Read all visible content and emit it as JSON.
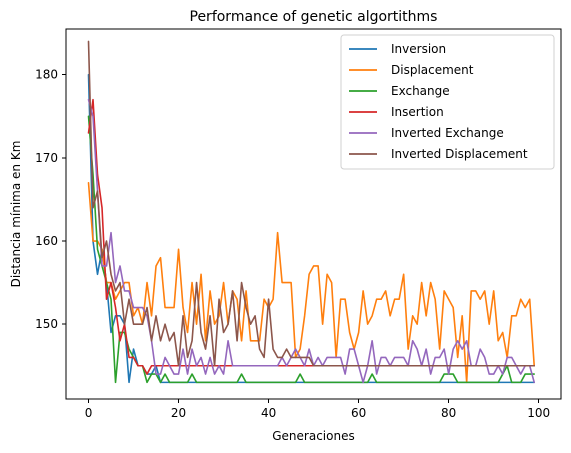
{
  "chart_data": {
    "type": "line",
    "title": "Performance of genetic algortithms",
    "xlabel": "Generaciones",
    "ylabel": "Distancia mínima en Km",
    "xlim": [
      -5,
      104.95
    ],
    "ylim": [
      141.0,
      185.5
    ],
    "xticks": [
      0,
      20,
      40,
      60,
      80,
      100
    ],
    "yticks": [
      150,
      160,
      170,
      180
    ],
    "grid": false,
    "legend_position": "top-right",
    "series": [
      {
        "name": "Inversion",
        "color": "#1f77b4",
        "x": [
          0,
          1,
          2,
          3,
          4,
          5,
          6,
          7,
          8,
          9,
          10,
          11,
          12,
          13,
          14,
          15,
          16,
          17,
          18,
          19,
          20,
          21,
          22,
          23,
          24,
          25,
          26,
          27,
          28,
          29,
          30,
          31,
          32,
          33,
          34,
          35,
          36,
          37,
          38,
          39,
          40,
          41,
          42,
          43,
          44,
          45,
          46,
          47,
          48,
          49,
          50,
          51,
          52,
          53,
          54,
          55,
          56,
          57,
          58,
          59,
          60,
          61,
          62,
          63,
          64,
          65,
          66,
          67,
          68,
          69,
          70,
          71,
          72,
          73,
          74,
          75,
          76,
          77,
          78,
          79,
          80,
          81,
          82,
          83,
          84,
          85,
          86,
          87,
          88,
          89,
          90,
          91,
          92,
          93,
          94,
          95,
          96,
          97,
          98,
          99
        ],
        "values": [
          180,
          160,
          156,
          159,
          155,
          149,
          151,
          151,
          150,
          143,
          147,
          145,
          145,
          144,
          144,
          145,
          143,
          143,
          143,
          143,
          143,
          143,
          143,
          143,
          143,
          143,
          143,
          143,
          143,
          143,
          143,
          143,
          143,
          143,
          143,
          143,
          143,
          143,
          143,
          143,
          143,
          143,
          143,
          143,
          143,
          143,
          143,
          143,
          143,
          143,
          143,
          143,
          143,
          143,
          143,
          143,
          143,
          143,
          143,
          143,
          143,
          143,
          143,
          143,
          143,
          143,
          143,
          143,
          143,
          143,
          143,
          143,
          143,
          143,
          143,
          143,
          143,
          143,
          143,
          143,
          143,
          143,
          143,
          143,
          143,
          143,
          143,
          143,
          143,
          143,
          143,
          143,
          143,
          143,
          143,
          143,
          143,
          143,
          143,
          143
        ]
      },
      {
        "name": "Displacement",
        "color": "#ff7f0e",
        "x": [
          0,
          1,
          2,
          3,
          4,
          5,
          6,
          7,
          8,
          9,
          10,
          11,
          12,
          13,
          14,
          15,
          16,
          17,
          18,
          19,
          20,
          21,
          22,
          23,
          24,
          25,
          26,
          27,
          28,
          29,
          30,
          31,
          32,
          33,
          34,
          35,
          36,
          37,
          38,
          39,
          40,
          41,
          42,
          43,
          44,
          45,
          46,
          47,
          48,
          49,
          50,
          51,
          52,
          53,
          54,
          55,
          56,
          57,
          58,
          59,
          60,
          61,
          62,
          63,
          64,
          65,
          66,
          67,
          68,
          69,
          70,
          71,
          72,
          73,
          74,
          75,
          76,
          77,
          78,
          79,
          80,
          81,
          82,
          83,
          84,
          85,
          86,
          87,
          88,
          89,
          90,
          91,
          92,
          93,
          94,
          95,
          96,
          97,
          98,
          99
        ],
        "values": [
          167,
          160,
          160,
          159,
          155,
          155,
          153,
          154,
          155,
          155,
          151,
          152,
          150,
          155,
          151,
          157,
          158,
          152,
          152,
          152,
          159,
          152,
          149,
          155,
          150,
          156,
          148,
          154,
          150,
          151,
          155,
          150,
          154,
          153,
          148,
          154,
          148,
          148,
          148,
          153,
          152,
          153,
          161,
          155,
          155,
          155,
          146,
          147,
          151,
          156,
          157,
          157,
          150,
          156,
          155,
          146,
          153,
          153,
          149,
          147,
          149,
          154,
          150,
          151,
          153,
          153,
          154,
          151,
          153,
          153,
          156,
          147,
          151,
          150,
          155,
          151,
          155,
          153,
          147,
          154,
          153,
          152,
          146,
          151,
          143,
          154,
          154,
          153,
          154,
          150,
          154,
          148,
          149,
          146,
          151,
          151,
          153,
          152,
          153,
          145
        ]
      },
      {
        "name": "Exchange",
        "color": "#2ca02c",
        "x": [
          0,
          1,
          2,
          3,
          4,
          5,
          6,
          7,
          8,
          9,
          10,
          11,
          12,
          13,
          14,
          15,
          16,
          17,
          18,
          19,
          20,
          21,
          22,
          23,
          24,
          25,
          26,
          27,
          28,
          29,
          30,
          31,
          32,
          33,
          34,
          35,
          36,
          37,
          38,
          39,
          40,
          41,
          42,
          43,
          44,
          45,
          46,
          47,
          48,
          49,
          50,
          51,
          52,
          53,
          54,
          55,
          56,
          57,
          58,
          59,
          60,
          61,
          62,
          63,
          64,
          65,
          66,
          67,
          68,
          69,
          70,
          71,
          72,
          73,
          74,
          75,
          76,
          77,
          78,
          79,
          80,
          81,
          82,
          83,
          84,
          85,
          86,
          87,
          88,
          89,
          90,
          91,
          92,
          93,
          94,
          95,
          96,
          97,
          98,
          99
        ],
        "values": [
          175,
          168,
          159,
          157,
          155,
          153,
          143,
          149,
          149,
          147,
          146,
          145,
          145,
          143,
          144,
          144,
          143,
          144,
          143,
          143,
          143,
          143,
          143,
          144,
          143,
          143,
          143,
          143,
          143,
          143,
          143,
          143,
          143,
          143,
          144,
          143,
          143,
          143,
          143,
          143,
          143,
          143,
          143,
          143,
          143,
          143,
          143,
          144,
          143,
          143,
          143,
          143,
          143,
          143,
          143,
          143,
          143,
          143,
          143,
          143,
          143,
          143,
          143,
          144,
          143,
          143,
          143,
          143,
          143,
          143,
          143,
          143,
          143,
          143,
          143,
          143,
          143,
          143,
          143,
          144,
          144,
          144,
          143,
          143,
          143,
          143,
          143,
          143,
          143,
          143,
          143,
          143,
          144,
          145,
          143,
          143,
          143,
          144,
          144,
          144
        ]
      },
      {
        "name": "Insertion",
        "color": "#d62728",
        "x": [
          0,
          1,
          2,
          3,
          4,
          5,
          6,
          7,
          8,
          9,
          10,
          11,
          12,
          13,
          14,
          15,
          16,
          17,
          18,
          19,
          20,
          21,
          22,
          23,
          24,
          25,
          26,
          27,
          28,
          29,
          30,
          31,
          32,
          33,
          34,
          35,
          36,
          37,
          38,
          39,
          40,
          41,
          42,
          43,
          44,
          45,
          46,
          47,
          48,
          49,
          50,
          51,
          52,
          53,
          54,
          55,
          56,
          57,
          58,
          59,
          60,
          61,
          62,
          63,
          64,
          65,
          66,
          67,
          68,
          69,
          70,
          71,
          72,
          73,
          74,
          75,
          76,
          77,
          78,
          79,
          80,
          81,
          82,
          83,
          84,
          85,
          86,
          87,
          88,
          89,
          90,
          91,
          92,
          93,
          94,
          95,
          96,
          97,
          98,
          99
        ],
        "values": [
          173,
          177,
          168,
          164,
          153,
          155,
          152,
          148,
          150,
          146,
          146,
          145,
          145,
          144,
          145,
          145,
          145,
          145,
          145,
          145,
          145,
          145,
          145,
          145,
          145,
          145,
          145,
          145,
          145,
          145,
          145,
          145,
          145,
          145,
          145,
          145,
          145,
          145,
          145,
          145,
          145,
          145,
          145,
          145,
          145,
          145,
          145,
          145,
          145,
          145,
          145,
          145,
          145,
          145,
          145,
          145,
          145,
          145,
          145,
          145,
          145,
          145,
          145,
          145,
          145,
          145,
          145,
          145,
          145,
          145,
          145,
          145,
          145,
          145,
          145,
          145,
          145,
          145,
          145,
          145,
          145,
          145,
          145,
          145,
          145,
          145,
          145,
          145,
          145,
          145,
          145,
          145,
          145,
          145,
          145,
          145,
          145,
          145,
          145,
          145
        ]
      },
      {
        "name": "Inverted Exchange",
        "color": "#9467bd",
        "x": [
          0,
          1,
          2,
          3,
          4,
          5,
          6,
          7,
          8,
          9,
          10,
          11,
          12,
          13,
          14,
          15,
          16,
          17,
          18,
          19,
          20,
          21,
          22,
          23,
          24,
          25,
          26,
          27,
          28,
          29,
          30,
          31,
          32,
          33,
          34,
          35,
          36,
          37,
          38,
          39,
          40,
          41,
          42,
          43,
          44,
          45,
          46,
          47,
          48,
          49,
          50,
          51,
          52,
          53,
          54,
          55,
          56,
          57,
          58,
          59,
          60,
          61,
          62,
          63,
          64,
          65,
          66,
          67,
          68,
          69,
          70,
          71,
          72,
          73,
          74,
          75,
          76,
          77,
          78,
          79,
          80,
          81,
          82,
          83,
          84,
          85,
          86,
          87,
          88,
          89,
          90,
          91,
          92,
          93,
          94,
          95,
          96,
          97,
          98,
          99
        ],
        "values": [
          177,
          175,
          166,
          157,
          157,
          161,
          155,
          157,
          154,
          154,
          152,
          152,
          152,
          151,
          148,
          144,
          144,
          146,
          145,
          144,
          144,
          147,
          144,
          147,
          145,
          146,
          144,
          146,
          144,
          145,
          144,
          148,
          145,
          145,
          145,
          145,
          145,
          145,
          145,
          145,
          145,
          145,
          145,
          146,
          145,
          146,
          147,
          146,
          145,
          147,
          145,
          146,
          145,
          146,
          146,
          146,
          146,
          144,
          147,
          147,
          145,
          143,
          145,
          148,
          144,
          146,
          146,
          145,
          146,
          146,
          146,
          145,
          148,
          147,
          145,
          147,
          144,
          146,
          146,
          147,
          144,
          147,
          148,
          147,
          148,
          145,
          145,
          147,
          146,
          144,
          144,
          145,
          144,
          146,
          146,
          145,
          144,
          145,
          145,
          143
        ]
      },
      {
        "name": "Inverted Displacement",
        "color": "#8c564b",
        "x": [
          0,
          1,
          2,
          3,
          4,
          5,
          6,
          7,
          8,
          9,
          10,
          11,
          12,
          13,
          14,
          15,
          16,
          17,
          18,
          19,
          20,
          21,
          22,
          23,
          24,
          25,
          26,
          27,
          28,
          29,
          30,
          31,
          32,
          33,
          34,
          35,
          36,
          37,
          38,
          39,
          40,
          41,
          42,
          43,
          44,
          45,
          46,
          47,
          48,
          49,
          50,
          51,
          52,
          53,
          54,
          55,
          56,
          57,
          58,
          59,
          60,
          61,
          62,
          63,
          64,
          65,
          66,
          67,
          68,
          69,
          70,
          71,
          72,
          73,
          74,
          75,
          76,
          77,
          78,
          79,
          80,
          81,
          82,
          83,
          84,
          85,
          86,
          87,
          88,
          89,
          90,
          91,
          92,
          93,
          94,
          95,
          96,
          97,
          98,
          99
        ],
        "values": [
          184,
          164,
          166,
          158,
          160,
          156,
          154,
          155,
          150,
          153,
          150,
          150,
          150,
          152,
          148,
          151,
          148,
          150,
          148,
          149,
          145,
          151,
          146,
          148,
          155,
          149,
          147,
          151,
          145,
          153,
          149,
          150,
          154,
          148,
          155,
          152,
          150,
          151,
          147,
          146,
          153,
          147,
          146,
          146,
          147,
          146,
          146,
          146,
          146,
          146,
          145,
          145,
          145,
          145,
          145,
          145,
          145,
          145,
          145,
          145,
          145,
          145,
          145,
          145,
          145,
          145,
          145,
          145,
          145,
          145,
          145,
          145,
          145,
          145,
          145,
          145,
          145,
          145,
          145,
          145,
          145,
          145,
          145,
          145,
          145,
          145,
          145,
          145,
          145,
          145,
          145,
          145,
          145,
          145,
          145,
          145,
          145,
          145,
          145,
          145
        ]
      }
    ]
  }
}
